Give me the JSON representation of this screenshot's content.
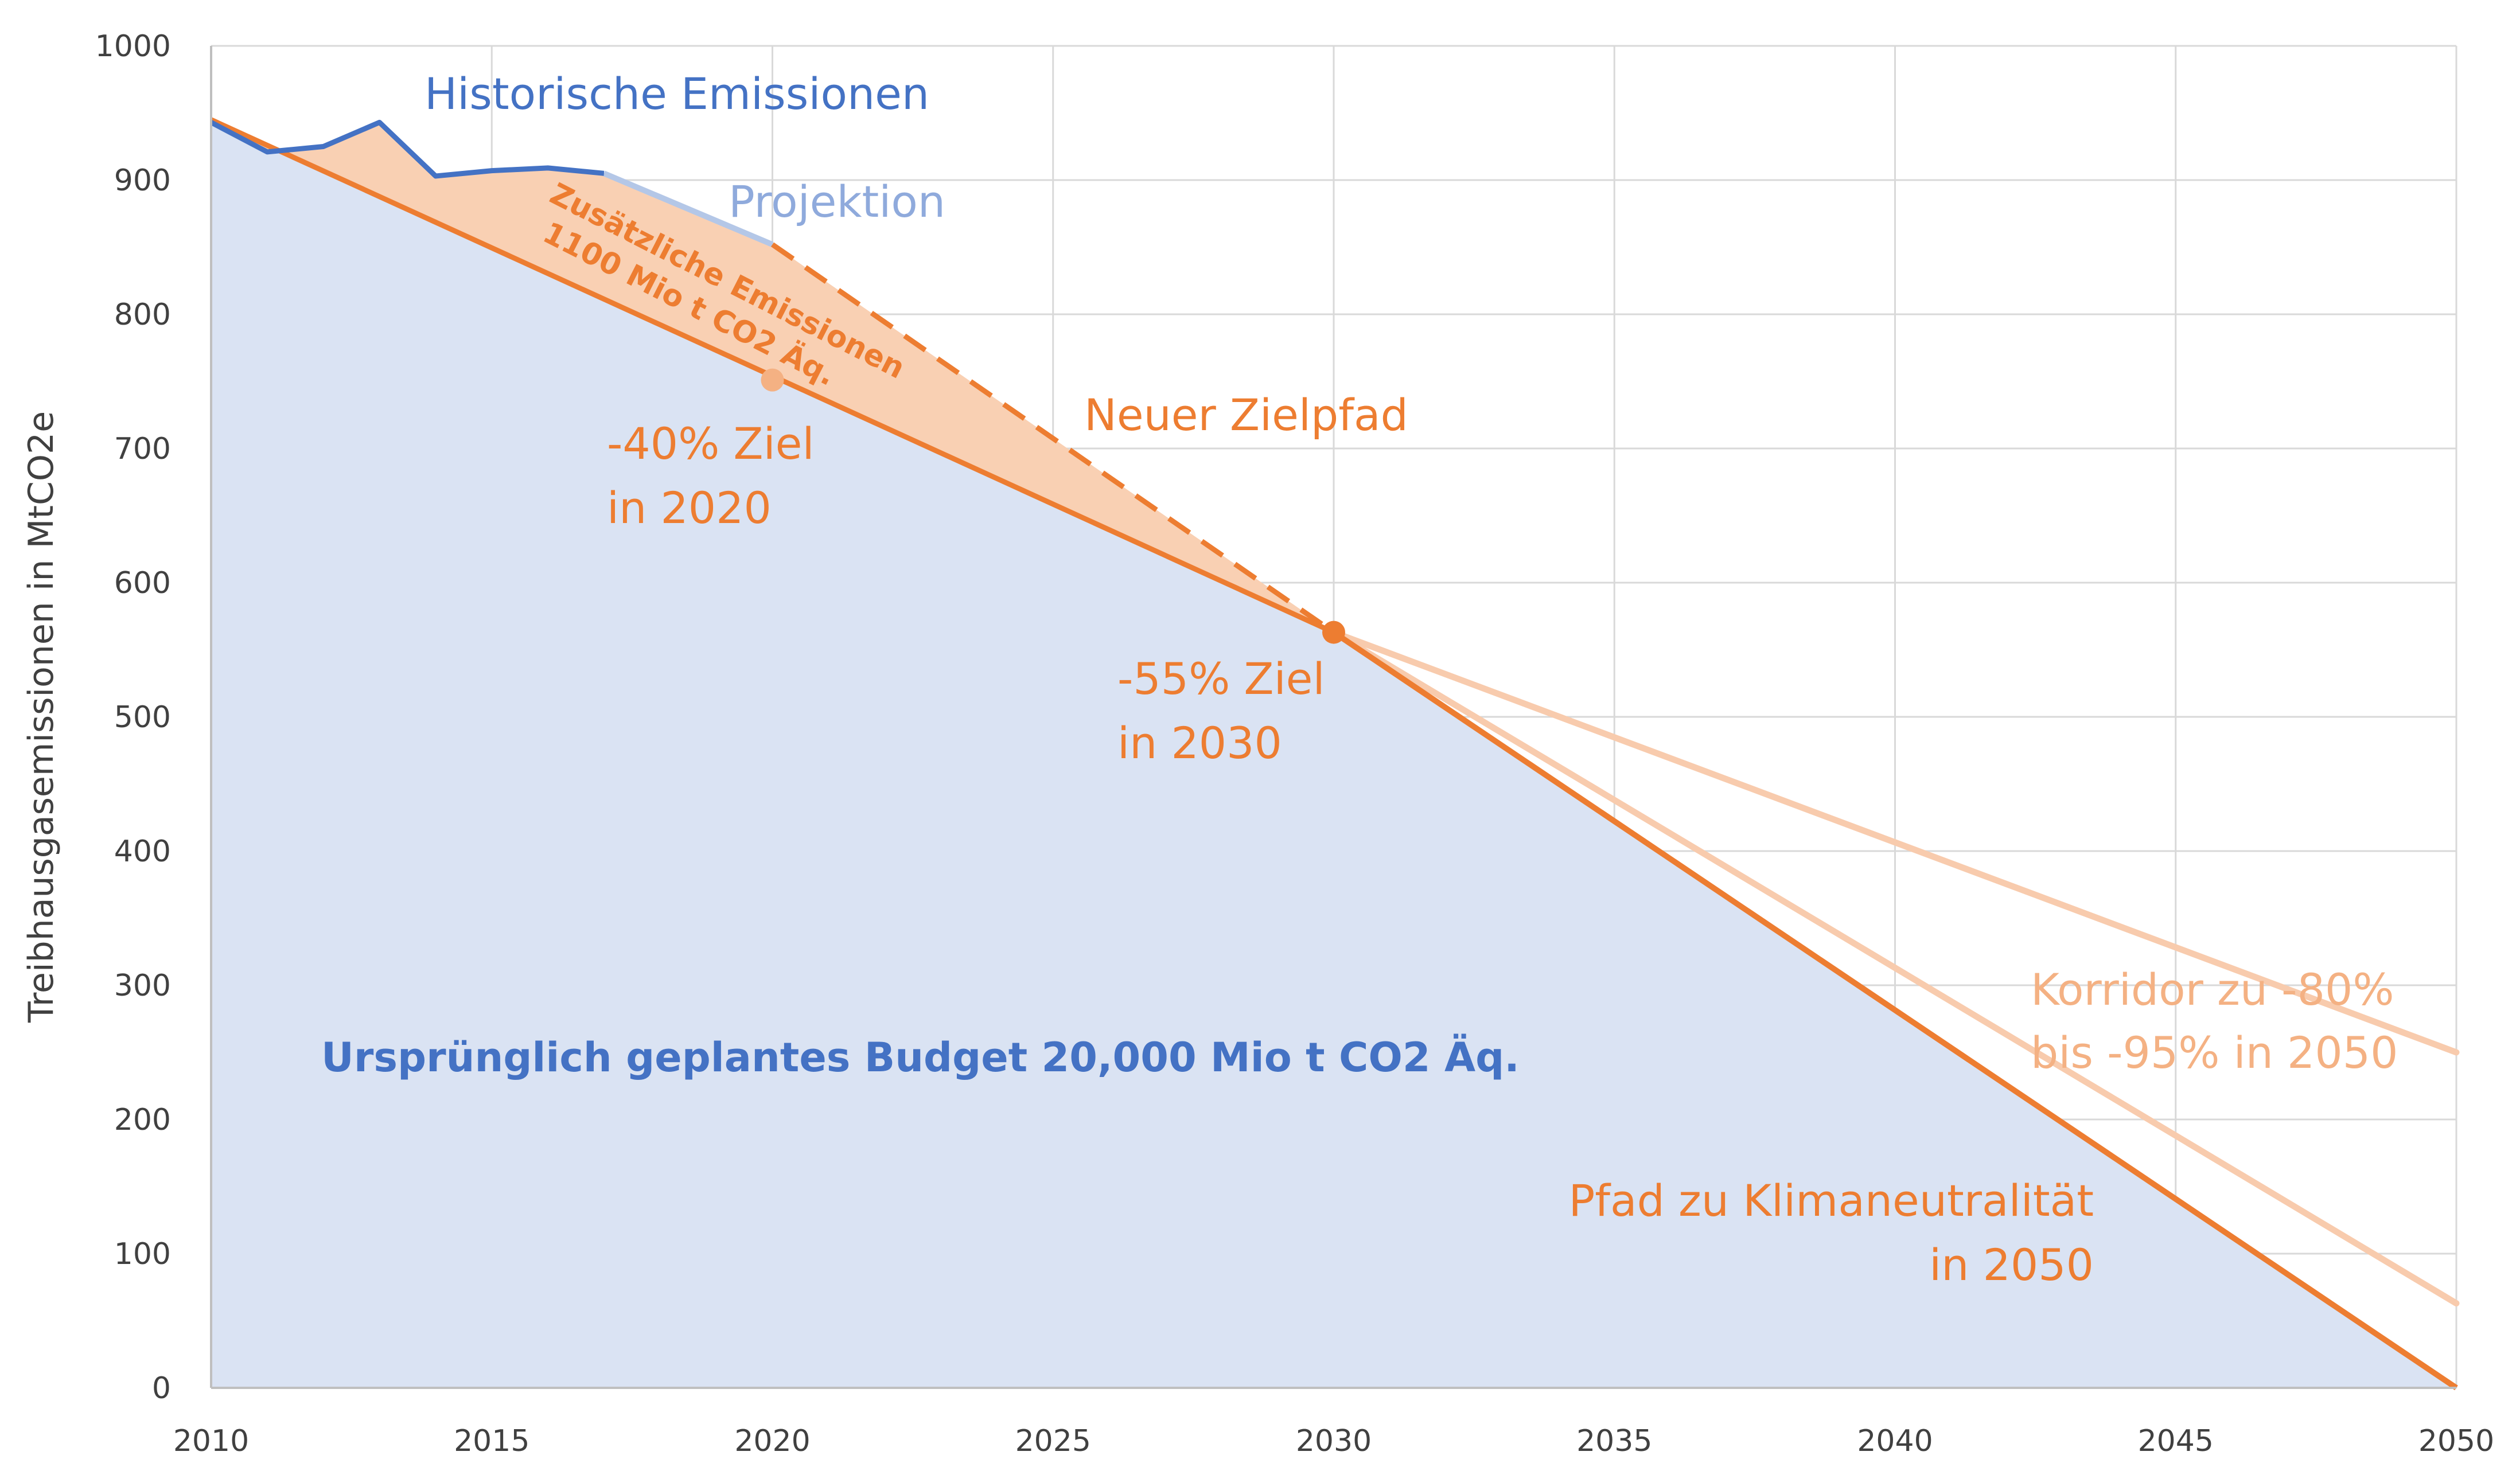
{
  "chart_data": {
    "type": "area",
    "xlim": [
      2010,
      2050
    ],
    "ylim": [
      0,
      1000
    ],
    "x_ticks": [
      2010,
      2015,
      2020,
      2025,
      2030,
      2035,
      2040,
      2045,
      2050
    ],
    "y_ticks": [
      0,
      100,
      200,
      300,
      400,
      500,
      600,
      700,
      800,
      900,
      1000
    ],
    "xlabel": "",
    "ylabel": "Treibhausgasemissionen in MtCO2e",
    "grid": true,
    "colors": {
      "budget_fill": "#dae3f3",
      "extra_fill": "#f9d0b3",
      "historical": "#4472c4",
      "projection": "#b4c7e7",
      "orange": "#ed7d31",
      "corridor": "#f8cbad",
      "grid": "#d9d9d9"
    },
    "series": [
      {
        "name": "Historische Emissionen",
        "x": [
          2010,
          2011,
          2012,
          2013,
          2014,
          2015,
          2016,
          2017
        ],
        "y": [
          943,
          921,
          925,
          943,
          903,
          907,
          909,
          905
        ]
      },
      {
        "name": "Projektion",
        "x": [
          2017,
          2020
        ],
        "y": [
          905,
          852
        ]
      },
      {
        "name": "Neuer Zielpfad",
        "x": [
          2020,
          2030
        ],
        "y": [
          852,
          563
        ]
      },
      {
        "name": "Pfad zu Klimaneutralität",
        "x": [
          2010,
          2030,
          2050
        ],
        "y": [
          945,
          563,
          0
        ]
      },
      {
        "name": "Korridor -80%",
        "x": [
          2030,
          2050
        ],
        "y": [
          563,
          250
        ]
      },
      {
        "name": "Korridor -95%",
        "x": [
          2030,
          2050
        ],
        "y": [
          563,
          63
        ]
      }
    ],
    "markers": [
      {
        "x": 2020,
        "y": 751
      },
      {
        "x": 2030,
        "y": 563
      }
    ],
    "labels": {
      "historical": "Historische Emissionen",
      "projection": "Projektion",
      "extra_line1": "Zusätzliche Emissionen",
      "extra_line2": "1100 Mio t CO2 Äq.",
      "target2020_line1": "-40% Ziel",
      "target2020_line2": "in 2020",
      "new_path": "Neuer Zielpfad",
      "target2030_line1": "-55% Ziel",
      "target2030_line2": "in 2030",
      "corridor_line1": "Korridor zu -80%",
      "corridor_line2": "bis -95% in 2050",
      "neutral_line1": "Pfad zu Klimaneutralität",
      "neutral_line2": "in 2050",
      "budget": "Ursprünglich geplantes Budget 20,000 Mio t CO2 Äq."
    }
  }
}
